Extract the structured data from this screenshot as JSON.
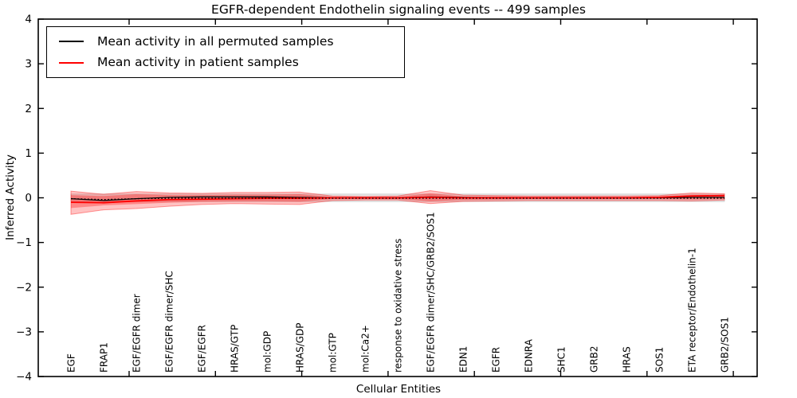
{
  "figure": {
    "background": "#ffffff"
  },
  "chart_data": {
    "type": "line",
    "title": "EGFR-dependent Endothelin signaling events -- 499 samples",
    "xlabel": "Cellular Entities",
    "ylabel": "Inferred Activity",
    "xlim": [
      -1,
      21
    ],
    "ylim": [
      -4,
      4
    ],
    "yticks": [
      4,
      3,
      2,
      1,
      0,
      -1,
      -2,
      -3,
      -4
    ],
    "grid": false,
    "legend_position": "upper left",
    "categories": [
      "EGF",
      "FRAP1",
      "EGF/EGFR dimer",
      "EGF/EGFR dimer/SHC",
      "EGF/EGFR",
      "HRAS/GTP",
      "mol:GDP",
      "HRAS/GDP",
      "mol:GTP",
      "mol:Ca2+",
      "response to oxidative stress",
      "EGF/EGFR dimer/SHC/GRB2/SOS1",
      "EDN1",
      "EGFR",
      "EDNRA",
      "SHC1",
      "GRB2",
      "HRAS",
      "SOS1",
      "ETA receptor/Endothelin-1",
      "GRB2/SOS1"
    ],
    "series": [
      {
        "name": "Mean activity in all permuted samples",
        "color": "#000000",
        "style": "solid",
        "values": [
          -0.02,
          -0.06,
          -0.02,
          0.01,
          0.02,
          0.02,
          0.02,
          0.01,
          0.0,
          0.0,
          0.0,
          0.02,
          0.01,
          0.0,
          0.0,
          0.0,
          0.0,
          0.0,
          0.0,
          0.01,
          0.01
        ]
      },
      {
        "name": "Mean activity in patient samples",
        "color": "#ff0000",
        "style": "solid",
        "values": [
          -0.1,
          -0.11,
          -0.07,
          -0.04,
          -0.03,
          -0.02,
          -0.01,
          -0.01,
          0.0,
          0.0,
          0.0,
          0.01,
          0.0,
          0.0,
          0.0,
          0.0,
          0.0,
          0.0,
          0.01,
          0.04,
          0.05
        ]
      }
    ],
    "baseline": {
      "name": "zero-baseline-dotted",
      "color": "#000000",
      "style": "dotted",
      "values": [
        -0.02,
        -0.04,
        -0.02,
        -0.01,
        -0.01,
        -0.01,
        -0.01,
        -0.01,
        -0.01,
        -0.01,
        -0.01,
        -0.01,
        -0.01,
        -0.01,
        -0.01,
        -0.01,
        -0.01,
        -0.01,
        -0.01,
        -0.01,
        -0.01
      ]
    },
    "bands": [
      {
        "name": "permuted-samples-range",
        "fill": "rgba(0,0,0,0.10)",
        "stroke": "rgba(0,0,0,0.12)",
        "upper": [
          0.085,
          0.085,
          0.085,
          0.085,
          0.085,
          0.085,
          0.085,
          0.085,
          0.085,
          0.085,
          0.085,
          0.085,
          0.085,
          0.085,
          0.085,
          0.085,
          0.085,
          0.085,
          0.085,
          0.085,
          0.085
        ],
        "lower": [
          -0.085,
          -0.085,
          -0.085,
          -0.085,
          -0.085,
          -0.085,
          -0.085,
          -0.085,
          -0.085,
          -0.085,
          -0.085,
          -0.085,
          -0.085,
          -0.085,
          -0.085,
          -0.085,
          -0.085,
          -0.085,
          -0.085,
          -0.085,
          -0.085
        ]
      },
      {
        "name": "patient-samples-range-outer",
        "fill": "rgba(255,0,0,0.24)",
        "stroke": "rgba(255,0,0,0.38)",
        "upper": [
          0.15,
          0.08,
          0.14,
          0.11,
          0.1,
          0.12,
          0.12,
          0.13,
          0.04,
          0.03,
          0.04,
          0.16,
          0.06,
          0.05,
          0.04,
          0.04,
          0.04,
          0.04,
          0.05,
          0.11,
          0.09
        ],
        "lower": [
          -0.37,
          -0.27,
          -0.24,
          -0.19,
          -0.15,
          -0.13,
          -0.14,
          -0.15,
          -0.06,
          -0.05,
          -0.05,
          -0.13,
          -0.08,
          -0.07,
          -0.06,
          -0.06,
          -0.06,
          -0.06,
          -0.06,
          -0.07,
          -0.05
        ]
      },
      {
        "name": "patient-samples-range-inner",
        "fill": "rgba(255,0,0,0.30)",
        "stroke": "none",
        "upper": [
          0.06,
          0.04,
          0.08,
          0.06,
          0.06,
          0.07,
          0.07,
          0.08,
          0.02,
          0.02,
          0.02,
          0.1,
          0.03,
          0.03,
          0.02,
          0.02,
          0.02,
          0.02,
          0.03,
          0.07,
          0.06
        ],
        "lower": [
          -0.23,
          -0.17,
          -0.14,
          -0.11,
          -0.09,
          -0.08,
          -0.08,
          -0.09,
          -0.03,
          -0.03,
          -0.03,
          -0.08,
          -0.05,
          -0.04,
          -0.03,
          -0.03,
          -0.03,
          -0.03,
          -0.03,
          -0.04,
          -0.03
        ]
      }
    ]
  }
}
